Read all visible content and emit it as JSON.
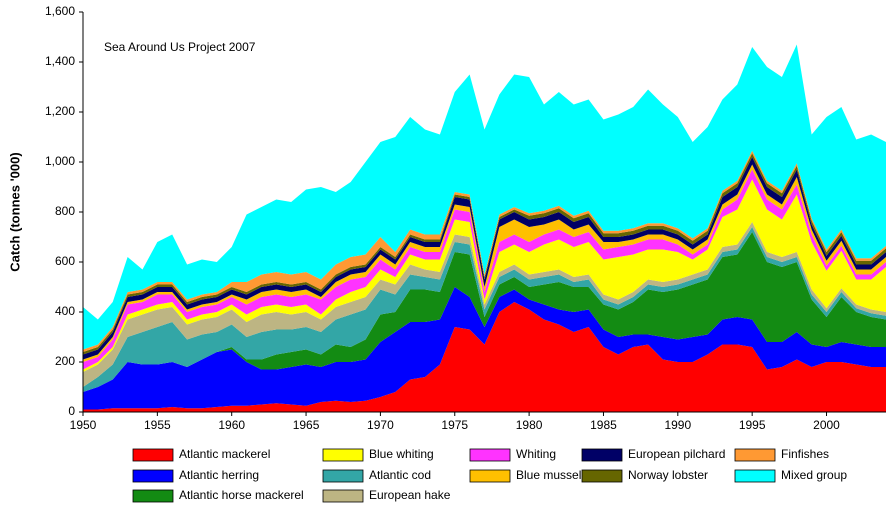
{
  "chart_data": {
    "type": "stacked_area",
    "annotation": "Sea Around Us Project 2007",
    "y_label": "Catch (tonnes '000)",
    "x": [
      1950,
      1951,
      1952,
      1953,
      1954,
      1955,
      1956,
      1957,
      1958,
      1959,
      1960,
      1961,
      1962,
      1963,
      1964,
      1965,
      1966,
      1967,
      1968,
      1969,
      1970,
      1971,
      1972,
      1973,
      1974,
      1975,
      1976,
      1977,
      1978,
      1979,
      1980,
      1981,
      1982,
      1983,
      1984,
      1985,
      1986,
      1987,
      1988,
      1989,
      1990,
      1991,
      1992,
      1993,
      1994,
      1995,
      1996,
      1997,
      1998,
      1999,
      2000,
      2001,
      2002,
      2003,
      2004
    ],
    "xlim": [
      1950,
      2004
    ],
    "xticks": [
      1950,
      1955,
      1960,
      1965,
      1970,
      1975,
      1980,
      1985,
      1990,
      1995,
      2000
    ],
    "ylim": [
      0,
      1600
    ],
    "yticks": [
      0,
      200,
      400,
      600,
      800,
      {
        "value": 1000,
        "label": "1,000"
      },
      {
        "value": 1200,
        "label": "1,200"
      },
      {
        "value": 1400,
        "label": "1,400"
      },
      {
        "value": 1600,
        "label": "1,600"
      }
    ],
    "grid": false,
    "series": [
      {
        "name": "Atlantic mackerel",
        "color": "#ff0000",
        "values": [
          10,
          10,
          15,
          15,
          15,
          15,
          20,
          15,
          15,
          20,
          25,
          25,
          30,
          35,
          30,
          25,
          40,
          45,
          40,
          45,
          60,
          80,
          130,
          140,
          190,
          340,
          330,
          270,
          400,
          440,
          410,
          370,
          350,
          320,
          340,
          260,
          230,
          260,
          270,
          210,
          200,
          200,
          230,
          270,
          270,
          260,
          170,
          180,
          210,
          180,
          200,
          200,
          190,
          180,
          180
        ]
      },
      {
        "name": "Atlantic herring",
        "color": "#0000ff",
        "values": [
          70,
          90,
          115,
          185,
          175,
          175,
          180,
          165,
          195,
          220,
          225,
          175,
          140,
          135,
          150,
          165,
          140,
          155,
          160,
          165,
          220,
          240,
          230,
          220,
          180,
          160,
          130,
          70,
          60,
          50,
          40,
          60,
          60,
          80,
          70,
          70,
          70,
          50,
          40,
          90,
          90,
          100,
          80,
          100,
          110,
          110,
          110,
          100,
          110,
          90,
          60,
          80,
          80,
          80,
          80
        ]
      },
      {
        "name": "Atlantic horse mackerel",
        "color": "#138b13",
        "values": [
          0,
          0,
          0,
          0,
          0,
          0,
          0,
          0,
          0,
          0,
          10,
          10,
          40,
          60,
          60,
          60,
          50,
          70,
          60,
          80,
          110,
          80,
          130,
          130,
          110,
          140,
          170,
          40,
          50,
          50,
          50,
          80,
          110,
          100,
          90,
          100,
          110,
          130,
          180,
          180,
          200,
          210,
          220,
          250,
          250,
          350,
          320,
          300,
          280,
          180,
          120,
          180,
          130,
          120,
          110
        ]
      },
      {
        "name": "Atlantic cod",
        "color": "#33a6a6",
        "values": [
          20,
          40,
          60,
          100,
          130,
          150,
          160,
          110,
          100,
          80,
          90,
          90,
          110,
          100,
          90,
          90,
          90,
          100,
          130,
          120,
          100,
          70,
          60,
          50,
          50,
          40,
          40,
          30,
          30,
          30,
          30,
          30,
          30,
          20,
          30,
          20,
          20,
          20,
          20,
          20,
          20,
          20,
          20,
          20,
          20,
          20,
          20,
          20,
          20,
          20,
          20,
          20,
          15,
          15,
          15
        ]
      },
      {
        "name": "European hake",
        "color": "#bdb583",
        "values": [
          60,
          50,
          60,
          70,
          70,
          70,
          60,
          60,
          60,
          60,
          60,
          60,
          70,
          70,
          60,
          60,
          50,
          50,
          50,
          50,
          40,
          40,
          40,
          30,
          30,
          30,
          30,
          20,
          20,
          20,
          20,
          20,
          20,
          20,
          20,
          20,
          20,
          20,
          20,
          20,
          20,
          20,
          20,
          20,
          20,
          20,
          20,
          20,
          20,
          20,
          15,
          15,
          15,
          15,
          15
        ]
      },
      {
        "name": "Blue whiting",
        "color": "#ffff00",
        "values": [
          10,
          10,
          10,
          20,
          20,
          20,
          20,
          20,
          20,
          20,
          20,
          30,
          30,
          30,
          30,
          30,
          20,
          30,
          40,
          40,
          40,
          30,
          40,
          40,
          50,
          60,
          60,
          20,
          80,
          80,
          90,
          110,
          120,
          120,
          130,
          140,
          170,
          150,
          120,
          130,
          110,
          60,
          80,
          120,
          140,
          170,
          170,
          150,
          230,
          190,
          150,
          150,
          100,
          120,
          180
        ]
      },
      {
        "name": "Whiting",
        "color": "#ff33ff",
        "values": [
          30,
          20,
          30,
          40,
          30,
          40,
          30,
          30,
          30,
          30,
          30,
          40,
          40,
          40,
          40,
          40,
          60,
          50,
          50,
          40,
          40,
          30,
          30,
          30,
          30,
          40,
          40,
          30,
          40,
          40,
          40,
          40,
          40,
          40,
          40,
          40,
          40,
          40,
          40,
          40,
          30,
          20,
          20,
          30,
          40,
          40,
          40,
          40,
          40,
          30,
          20,
          20,
          20,
          20,
          20
        ]
      },
      {
        "name": "Blue mussel",
        "color": "#ffc000",
        "values": [
          10,
          10,
          10,
          10,
          10,
          10,
          10,
          10,
          10,
          10,
          10,
          20,
          20,
          20,
          20,
          20,
          10,
          20,
          20,
          20,
          20,
          20,
          20,
          20,
          20,
          20,
          20,
          20,
          60,
          60,
          60,
          40,
          40,
          30,
          30,
          30,
          20,
          20,
          20,
          20,
          20,
          20,
          20,
          20,
          20,
          20,
          20,
          20,
          30,
          20,
          20,
          20,
          20,
          20,
          20
        ]
      },
      {
        "name": "European pilchard",
        "color": "#000066",
        "values": [
          20,
          20,
          20,
          20,
          20,
          20,
          20,
          20,
          20,
          20,
          20,
          20,
          20,
          20,
          20,
          20,
          20,
          20,
          20,
          20,
          20,
          20,
          20,
          20,
          20,
          30,
          30,
          30,
          30,
          30,
          30,
          30,
          30,
          30,
          30,
          20,
          20,
          20,
          20,
          20,
          20,
          20,
          20,
          30,
          30,
          30,
          30,
          30,
          30,
          20,
          20,
          20,
          20,
          20,
          20
        ]
      },
      {
        "name": "Norway lobster",
        "color": "#666600",
        "values": [
          10,
          10,
          10,
          10,
          10,
          10,
          10,
          10,
          10,
          10,
          10,
          10,
          10,
          10,
          10,
          10,
          10,
          10,
          10,
          10,
          10,
          10,
          10,
          10,
          10,
          10,
          10,
          10,
          10,
          10,
          15,
          15,
          15,
          15,
          15,
          15,
          15,
          15,
          15,
          15,
          15,
          15,
          15,
          15,
          15,
          15,
          15,
          15,
          15,
          15,
          15,
          15,
          15,
          15,
          15
        ]
      },
      {
        "name": "Finfishes",
        "color": "#ff9933",
        "values": [
          10,
          10,
          10,
          10,
          10,
          10,
          10,
          10,
          10,
          10,
          20,
          40,
          40,
          40,
          40,
          40,
          40,
          40,
          40,
          40,
          40,
          20,
          20,
          20,
          20,
          10,
          10,
          10,
          10,
          10,
          10,
          10,
          10,
          10,
          10,
          10,
          10,
          10,
          10,
          10,
          10,
          10,
          10,
          10,
          10,
          10,
          10,
          10,
          10,
          10,
          10,
          10,
          10,
          10,
          10
        ]
      },
      {
        "name": "Mixed group",
        "color": "#00ffff",
        "values": [
          170,
          100,
          100,
          140,
          80,
          160,
          190,
          140,
          140,
          120,
          140,
          270,
          270,
          290,
          290,
          330,
          370,
          290,
          300,
          370,
          380,
          460,
          450,
          420,
          400,
          400,
          480,
          580,
          480,
          530,
          545,
          425,
          455,
          445,
          445,
          445,
          465,
          485,
          535,
          475,
          445,
          385,
          405,
          365,
          385,
          415,
          455,
          455,
          475,
          335,
          530,
          490,
          475,
          495,
          415
        ]
      }
    ]
  }
}
